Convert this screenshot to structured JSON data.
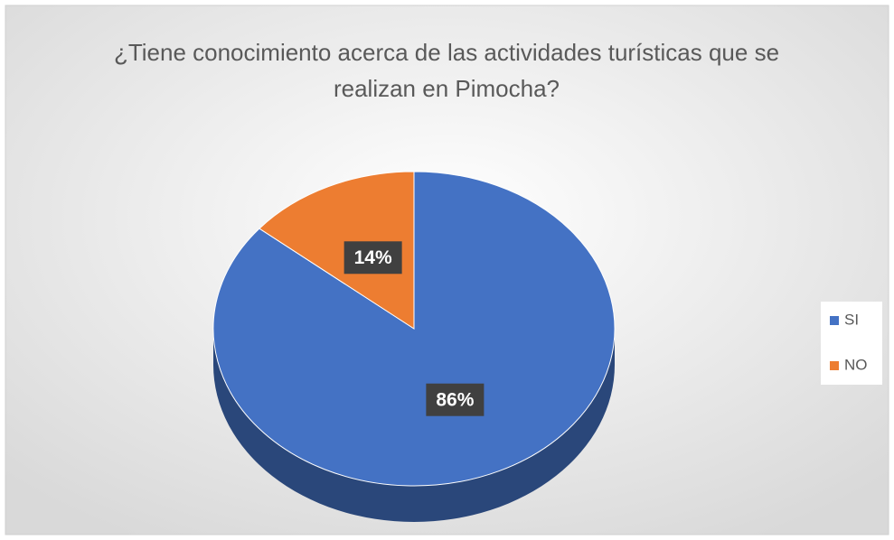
{
  "chart_data": {
    "type": "pie",
    "title": "¿Tiene conocimiento acerca de las actividades turísticas que se realizan en Pimocha?",
    "categories": [
      "SI",
      "NO"
    ],
    "values": [
      86,
      14
    ],
    "value_labels": [
      "86%",
      "14%"
    ],
    "colors": [
      "#4472c4",
      "#ed7d31"
    ],
    "legend": "right"
  }
}
